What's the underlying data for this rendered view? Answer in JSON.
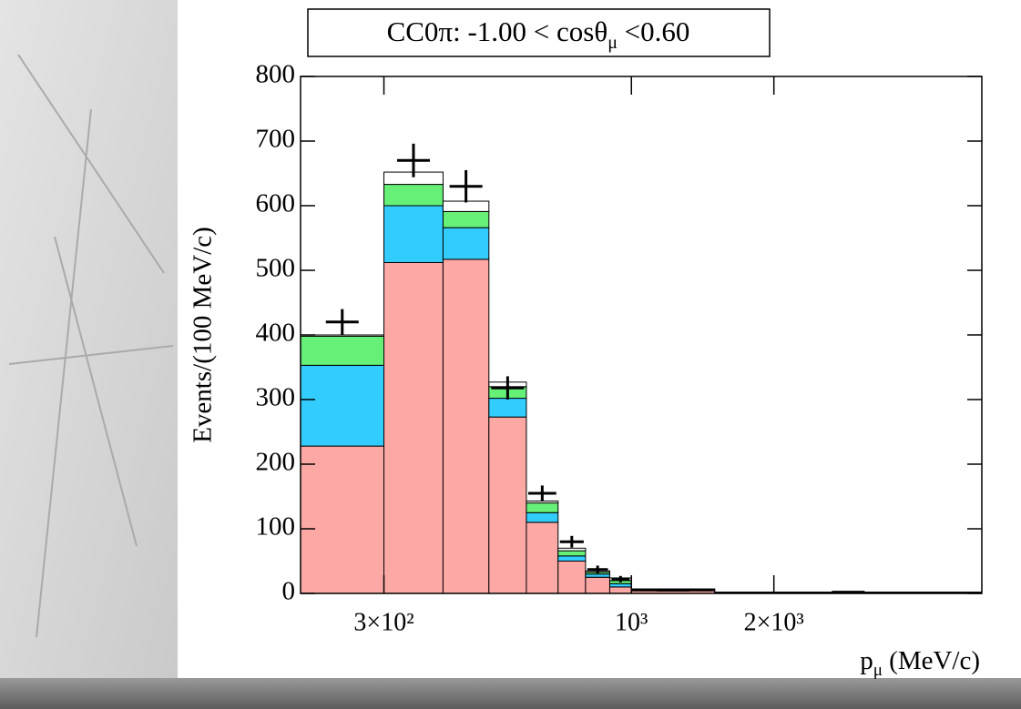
{
  "chart_data": {
    "type": "histogram",
    "title": [
      "CC0π: -1.00 < cosθ",
      "μ",
      " <0.60"
    ],
    "y_label": "Events/(100 MeV/c)",
    "x_label": [
      "p",
      "μ",
      " (MeV/c)"
    ],
    "x_scale": "log",
    "bins": [
      200,
      300,
      400,
      500,
      600,
      700,
      800,
      900,
      1000,
      1500,
      5500
    ],
    "series": [
      {
        "color": "#fca9a6",
        "values": [
          228,
          512,
          517,
          273,
          110,
          50,
          25,
          10,
          4,
          1
        ]
      },
      {
        "color": "#33ccff",
        "values": [
          125,
          88,
          49,
          29,
          15,
          8,
          5,
          5,
          1,
          0.5
        ]
      },
      {
        "color": "#66f077",
        "values": [
          45,
          33,
          25,
          18,
          15,
          8,
          3,
          5,
          1,
          0.3
        ]
      },
      {
        "color": "#ffffff",
        "values": [
          2,
          19,
          16,
          7,
          3,
          4,
          2,
          4,
          1,
          0.2
        ]
      }
    ],
    "data_points": {
      "color": "#000000",
      "values": [
        420,
        670,
        630,
        318,
        155,
        80,
        37,
        22,
        5,
        2
      ],
      "errors": [
        20,
        26,
        25,
        18,
        12,
        9,
        6,
        5,
        2,
        1
      ]
    },
    "xlim": [
      200,
      5500
    ],
    "ylim": [
      0,
      800
    ],
    "xticks": [
      {
        "value": 300,
        "label": "3×10²"
      },
      {
        "value": 1000,
        "label": "10³"
      },
      {
        "value": 2000,
        "label": "2×10³"
      }
    ],
    "yticks": [
      0,
      100,
      200,
      300,
      400,
      500,
      600,
      700,
      800
    ]
  }
}
